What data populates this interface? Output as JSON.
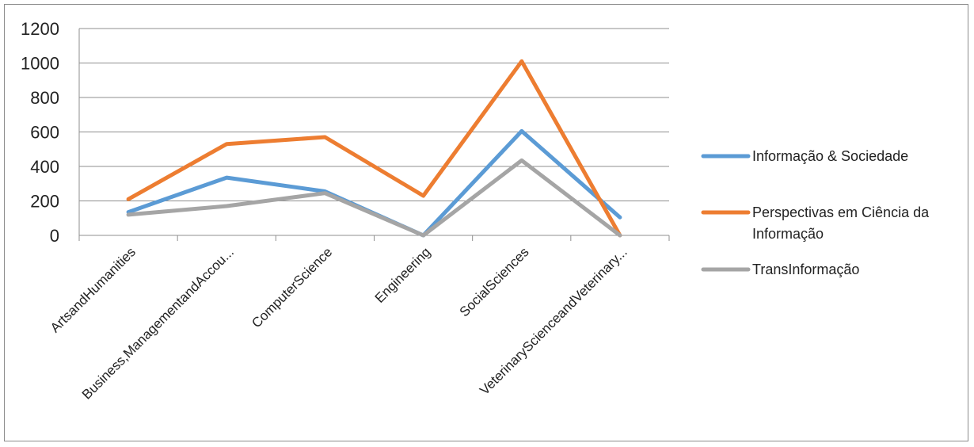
{
  "chart_data": {
    "type": "line",
    "title": "",
    "xlabel": "",
    "ylabel": "",
    "ylim": [
      0,
      1200
    ],
    "yticks": [
      "0",
      "200",
      "400",
      "600",
      "800",
      "1000",
      "1200"
    ],
    "grid": true,
    "legend_position": "right",
    "categories": [
      "ArtsandHumanities",
      "Business,ManagementandAccou...",
      "ComputerScience",
      "Engineering",
      "SocialSciences",
      "VeterinaryScienceandVeterinary..."
    ],
    "series": [
      {
        "name": "Informação & Sociedade",
        "color": "#5b9bd5",
        "values": [
          135,
          335,
          255,
          0,
          605,
          105
        ]
      },
      {
        "name": "Perspectivas em Ciência da Informação",
        "color": "#ed7d31",
        "values": [
          210,
          530,
          570,
          230,
          1010,
          0
        ]
      },
      {
        "name": "TransInformação",
        "color": "#a5a5a5",
        "values": [
          120,
          170,
          245,
          0,
          435,
          0
        ]
      }
    ],
    "legend_lines": [
      [
        "Informação & Sociedade"
      ],
      [
        "Perspectivas em Ciência da",
        "Informação"
      ],
      [
        "TransInformação"
      ]
    ]
  }
}
